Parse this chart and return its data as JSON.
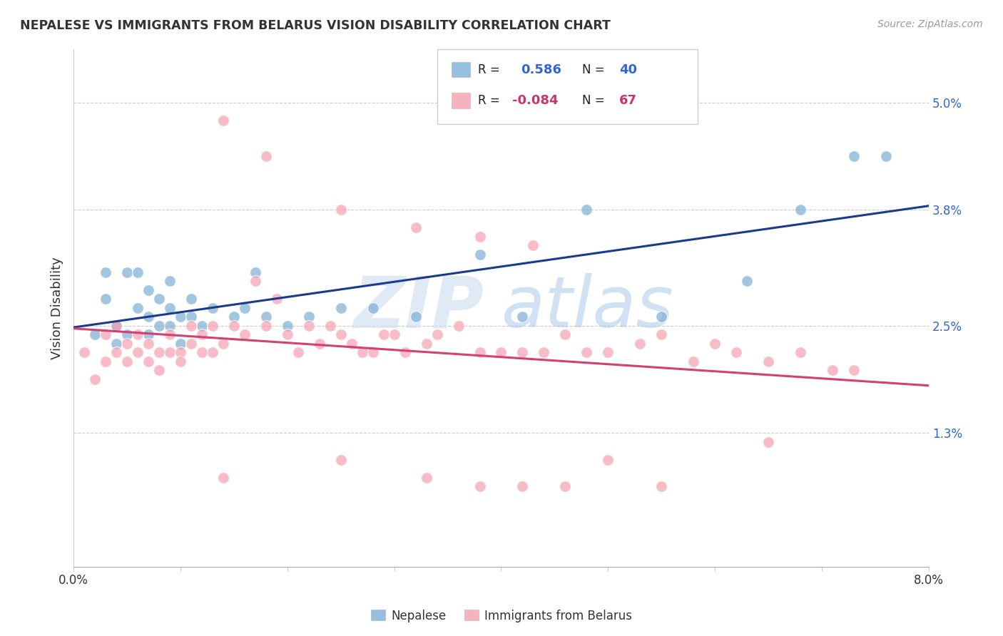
{
  "title": "NEPALESE VS IMMIGRANTS FROM BELARUS VISION DISABILITY CORRELATION CHART",
  "source": "Source: ZipAtlas.com",
  "ylabel": "Vision Disability",
  "ytick_labels": [
    "5.0%",
    "3.8%",
    "2.5%",
    "1.3%"
  ],
  "ytick_values": [
    0.05,
    0.038,
    0.025,
    0.013
  ],
  "xlim": [
    0.0,
    0.08
  ],
  "ylim": [
    -0.002,
    0.056
  ],
  "nepalese_R": 0.586,
  "nepalese_N": 40,
  "belarus_R": -0.084,
  "belarus_N": 67,
  "nepalese_color": "#7bafd4",
  "belarus_color": "#f4a0b0",
  "nepalese_line_color": "#1a3a8c",
  "belarus_line_color": "#d44070",
  "background_color": "#ffffff",
  "grid_color": "#cccccc",
  "watermark_zip": "ZIP",
  "watermark_atlas": "atlas",
  "legend_R_color": "#3366cc",
  "legend_neg_color": "#cc3366",
  "nepalese_x": [
    0.002,
    0.003,
    0.003,
    0.004,
    0.004,
    0.005,
    0.005,
    0.006,
    0.006,
    0.007,
    0.007,
    0.007,
    0.008,
    0.008,
    0.009,
    0.009,
    0.009,
    0.01,
    0.01,
    0.011,
    0.011,
    0.012,
    0.013,
    0.015,
    0.016,
    0.017,
    0.018,
    0.02,
    0.022,
    0.025,
    0.028,
    0.032,
    0.038,
    0.042,
    0.048,
    0.055,
    0.063,
    0.068,
    0.073,
    0.076
  ],
  "nepalese_y": [
    0.024,
    0.028,
    0.031,
    0.023,
    0.025,
    0.024,
    0.031,
    0.027,
    0.031,
    0.024,
    0.026,
    0.029,
    0.025,
    0.028,
    0.025,
    0.027,
    0.03,
    0.023,
    0.026,
    0.026,
    0.028,
    0.025,
    0.027,
    0.026,
    0.027,
    0.031,
    0.026,
    0.025,
    0.026,
    0.027,
    0.027,
    0.026,
    0.033,
    0.026,
    0.038,
    0.026,
    0.03,
    0.038,
    0.044,
    0.044
  ],
  "belarus_x": [
    0.001,
    0.002,
    0.003,
    0.003,
    0.004,
    0.004,
    0.005,
    0.005,
    0.006,
    0.006,
    0.007,
    0.007,
    0.008,
    0.008,
    0.009,
    0.009,
    0.01,
    0.01,
    0.011,
    0.011,
    0.012,
    0.012,
    0.013,
    0.013,
    0.014,
    0.015,
    0.016,
    0.017,
    0.018,
    0.019,
    0.02,
    0.021,
    0.022,
    0.023,
    0.024,
    0.025,
    0.026,
    0.027,
    0.028,
    0.029,
    0.03,
    0.031,
    0.033,
    0.034,
    0.036,
    0.038,
    0.04,
    0.042,
    0.044,
    0.046,
    0.048,
    0.05,
    0.053,
    0.055,
    0.058,
    0.06,
    0.062,
    0.065,
    0.068,
    0.071,
    0.014,
    0.018,
    0.025,
    0.032,
    0.038,
    0.043,
    0.073
  ],
  "belarus_y": [
    0.022,
    0.019,
    0.021,
    0.024,
    0.022,
    0.025,
    0.021,
    0.023,
    0.022,
    0.024,
    0.021,
    0.023,
    0.022,
    0.02,
    0.022,
    0.024,
    0.022,
    0.021,
    0.023,
    0.025,
    0.022,
    0.024,
    0.022,
    0.025,
    0.023,
    0.025,
    0.024,
    0.03,
    0.025,
    0.028,
    0.024,
    0.022,
    0.025,
    0.023,
    0.025,
    0.024,
    0.023,
    0.022,
    0.022,
    0.024,
    0.024,
    0.022,
    0.023,
    0.024,
    0.025,
    0.022,
    0.022,
    0.022,
    0.022,
    0.024,
    0.022,
    0.022,
    0.023,
    0.024,
    0.021,
    0.023,
    0.022,
    0.021,
    0.022,
    0.02,
    0.048,
    0.044,
    0.038,
    0.036,
    0.035,
    0.034,
    0.02
  ],
  "belarus_outlier_x": [
    0.014,
    0.025,
    0.033,
    0.038,
    0.042,
    0.046,
    0.05,
    0.055,
    0.065
  ],
  "belarus_outlier_y": [
    0.008,
    0.01,
    0.008,
    0.007,
    0.007,
    0.007,
    0.01,
    0.007,
    0.012
  ]
}
